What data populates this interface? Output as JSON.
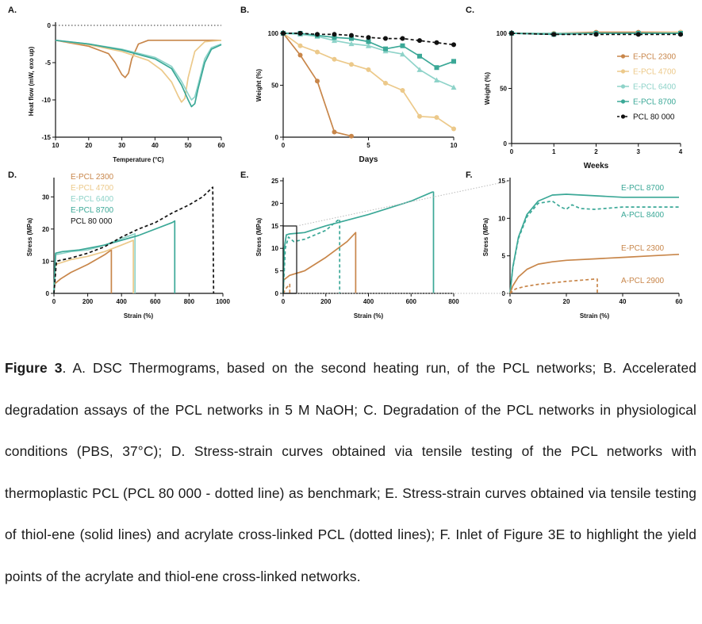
{
  "figure": {
    "caption_label": "Figure 3",
    "caption_text": ". A. DSC Thermograms, based on the second heating run, of the PCL networks; B. Accelerated degradation assays of the PCL networks in 5 M NaOH; C. Degradation of the PCL networks in physiological conditions (PBS, 37°C); D. Stress-strain curves obtained via tensile testing of the PCL networks with thermoplastic PCL (PCL 80 000 - dotted line) as benchmark; E. Stress-strain curves obtained via tensile testing of thiol-ene (solid lines) and acrylate cross-linked PCL (dotted lines); F. Inlet of Figure 3E to highlight the yield points of the acrylate and thiol-ene cross-linked networks."
  },
  "colors": {
    "e2300": "#c8864a",
    "e4700": "#ecc98a",
    "e6400": "#8ed3c9",
    "e8700": "#3ba897",
    "pcl80": "#111111"
  },
  "chart_data": [
    {
      "panel": "A.",
      "type": "line",
      "xlabel": "Temperature (°C)",
      "ylabel": "Heat flow (mW, exo up)",
      "xlim": [
        10,
        60
      ],
      "ylim": [
        -15,
        0
      ],
      "xticks": [
        10,
        20,
        30,
        40,
        50,
        60
      ],
      "yticks": [
        -15,
        -10,
        -5,
        0
      ],
      "reference_line": 0,
      "series": [
        {
          "key": "e2300",
          "x": [
            10,
            20,
            26,
            28,
            30,
            31,
            32,
            33,
            35,
            38,
            45,
            55,
            60
          ],
          "y": [
            -2,
            -2.8,
            -3.8,
            -5,
            -6.6,
            -7,
            -6.4,
            -4.5,
            -2.5,
            -2,
            -2,
            -2,
            -2
          ]
        },
        {
          "key": "e4700",
          "x": [
            10,
            20,
            30,
            38,
            42,
            45,
            47,
            48,
            49,
            50,
            52,
            55,
            60
          ],
          "y": [
            -2,
            -2.6,
            -3.5,
            -4.7,
            -6,
            -7.6,
            -9.5,
            -10.3,
            -9.8,
            -7,
            -3.5,
            -2.2,
            -2
          ]
        },
        {
          "key": "e6400",
          "x": [
            10,
            20,
            30,
            40,
            45,
            48,
            50,
            51,
            52,
            53,
            55,
            57,
            60
          ],
          "y": [
            -2,
            -2.5,
            -3.2,
            -4.3,
            -5.5,
            -7.5,
            -9.2,
            -10,
            -9.6,
            -8,
            -4.5,
            -3,
            -2.5
          ]
        },
        {
          "key": "e8700",
          "x": [
            10,
            20,
            30,
            40,
            45,
            48,
            50,
            51,
            52,
            53,
            55,
            57,
            60
          ],
          "y": [
            -2,
            -2.5,
            -3.3,
            -4.5,
            -5.8,
            -8,
            -10,
            -10.9,
            -10.5,
            -8.5,
            -5,
            -3.2,
            -2.6
          ]
        }
      ]
    },
    {
      "panel": "B.",
      "type": "line",
      "xlabel": "Days",
      "ylabel": "Weight (%)",
      "xlim": [
        0,
        10
      ],
      "ylim": [
        0,
        100
      ],
      "xticks": [
        0,
        5,
        10
      ],
      "yticks": [
        0,
        50,
        100
      ],
      "series": [
        {
          "key": "e2300",
          "x": [
            0,
            1,
            2,
            3,
            4
          ],
          "y": [
            100,
            79,
            54,
            5,
            1
          ]
        },
        {
          "key": "e4700",
          "x": [
            0,
            1,
            2,
            3,
            4,
            5,
            6,
            7,
            8,
            9,
            10
          ],
          "y": [
            100,
            88,
            82,
            75,
            70,
            65,
            52,
            45,
            20,
            19,
            8
          ]
        },
        {
          "key": "e6400",
          "x": [
            0,
            1,
            2,
            3,
            4,
            5,
            6,
            7,
            8,
            9,
            10
          ],
          "y": [
            100,
            99,
            97,
            93,
            90,
            88,
            83,
            80,
            65,
            55,
            48
          ]
        },
        {
          "key": "e8700",
          "x": [
            0,
            1,
            2,
            3,
            4,
            5,
            6,
            7,
            8,
            9,
            10
          ],
          "y": [
            100,
            100,
            98,
            96,
            95,
            92,
            85,
            88,
            78,
            67,
            73
          ]
        },
        {
          "key": "pcl80",
          "dashed": true,
          "x": [
            0,
            1,
            2,
            3,
            4,
            5,
            6,
            7,
            8,
            9,
            10
          ],
          "y": [
            100,
            100,
            99,
            99,
            98,
            96,
            95,
            95,
            93,
            91,
            89
          ]
        }
      ]
    },
    {
      "panel": "C.",
      "type": "line",
      "xlabel": "Weeks",
      "ylabel": "Weight (%)",
      "xlim": [
        0,
        4
      ],
      "ylim": [
        0,
        100
      ],
      "xticks": [
        0,
        1,
        2,
        3,
        4
      ],
      "yticks": [
        0,
        50,
        100
      ],
      "legend": [
        {
          "key": "e2300",
          "label": "E-PCL 2300"
        },
        {
          "key": "e4700",
          "label": "E-PCL 4700"
        },
        {
          "key": "e6400",
          "label": "E-PCL 6400"
        },
        {
          "key": "e8700",
          "label": "E-PCL 8700"
        },
        {
          "key": "pcl80",
          "label": "PCL 80 000"
        }
      ],
      "series": [
        {
          "key": "e2300",
          "x": [
            0,
            1,
            2,
            3,
            4
          ],
          "y": [
            100,
            100,
            101,
            101,
            101
          ]
        },
        {
          "key": "e4700",
          "x": [
            0,
            1,
            2,
            3,
            4
          ],
          "y": [
            100,
            100,
            100,
            100,
            101
          ]
        },
        {
          "key": "e6400",
          "x": [
            0,
            1,
            2,
            3,
            4
          ],
          "y": [
            100,
            100,
            100,
            100,
            100
          ]
        },
        {
          "key": "e8700",
          "x": [
            0,
            1,
            2,
            3,
            4
          ],
          "y": [
            100,
            99,
            100,
            100,
            100
          ]
        },
        {
          "key": "pcl80",
          "dashed": true,
          "x": [
            0,
            1,
            2,
            3,
            4
          ],
          "y": [
            100,
            99,
            99,
            99,
            99
          ]
        }
      ]
    },
    {
      "panel": "D.",
      "type": "line",
      "xlabel": "Strain (%)",
      "ylabel": "Stress (MPa)",
      "xlim": [
        0,
        1000
      ],
      "ylim": [
        0,
        35
      ],
      "xticks": [
        0,
        200,
        400,
        600,
        800,
        1000
      ],
      "yticks": [
        0,
        10,
        20,
        30
      ],
      "legend": [
        {
          "key": "e2300",
          "label": "E-PCL 2300"
        },
        {
          "key": "e4700",
          "label": "E-PCL 4700"
        },
        {
          "key": "e6400",
          "label": "E-PCL 6400"
        },
        {
          "key": "e8700",
          "label": "E-PCL 8700"
        },
        {
          "key": "pcl80",
          "label": "PCL 80 000"
        }
      ],
      "series": [
        {
          "key": "e2300",
          "x": [
            0,
            5,
            40,
            100,
            200,
            300,
            340,
            340
          ],
          "y": [
            0,
            3,
            4.5,
            6.5,
            9,
            12,
            13.5,
            0
          ]
        },
        {
          "key": "e4700",
          "x": [
            0,
            10,
            100,
            200,
            300,
            400,
            470,
            470
          ],
          "y": [
            0,
            9,
            10.5,
            11.5,
            13,
            15,
            16.5,
            0
          ]
        },
        {
          "key": "e6400",
          "x": [
            0,
            10,
            100,
            200,
            300,
            400,
            480,
            480
          ],
          "y": [
            0,
            12,
            13,
            13.5,
            15,
            17,
            18.5,
            0
          ]
        },
        {
          "key": "e8700",
          "x": [
            0,
            10,
            50,
            150,
            300,
            500,
            700,
            715,
            715
          ],
          "y": [
            0,
            12.5,
            13,
            13.5,
            15,
            18,
            22,
            22.5,
            0
          ]
        },
        {
          "key": "pcl80",
          "dashed": true,
          "x": [
            0,
            15,
            100,
            200,
            300,
            400,
            500,
            600,
            700,
            800,
            880,
            940,
            945
          ],
          "y": [
            0,
            10,
            11,
            12.5,
            14.5,
            17.5,
            20,
            22,
            25,
            27.5,
            30,
            33,
            0
          ]
        }
      ]
    },
    {
      "panel": "E.",
      "type": "line",
      "xlabel": "Strain (%)",
      "ylabel": "Stress (MPa)",
      "xlim": [
        0,
        800
      ],
      "ylim": [
        0,
        25
      ],
      "xticks": [
        0,
        200,
        400,
        600,
        800
      ],
      "yticks": [
        0,
        5,
        10,
        15,
        20,
        25
      ],
      "series": [
        {
          "key": "e2300",
          "x": [
            0,
            3,
            30,
            100,
            200,
            300,
            340,
            340
          ],
          "y": [
            0,
            3,
            4,
            5,
            8,
            11.5,
            13.5,
            0
          ]
        },
        {
          "key": "e8700",
          "x": [
            0,
            5,
            15,
            30,
            100,
            200,
            400,
            600,
            700,
            705,
            705
          ],
          "y": [
            0,
            10,
            13,
            13.2,
            13.5,
            15,
            17.5,
            20.5,
            22.5,
            22.5,
            0
          ]
        },
        {
          "key": "e2300",
          "dashed": true,
          "x": [
            0,
            15,
            30,
            31,
            31
          ],
          "y": [
            0,
            1.2,
            2,
            2,
            0
          ]
        },
        {
          "key": "e8700",
          "dashed": true,
          "x": [
            0,
            10,
            25,
            50,
            100,
            150,
            200,
            250,
            265,
            265
          ],
          "y": [
            0,
            10,
            12.5,
            11.5,
            12,
            13,
            14,
            16,
            16.5,
            0
          ]
        }
      ]
    },
    {
      "panel": "F.",
      "type": "line",
      "xlabel": "Strain (%)",
      "ylabel": "Stress (MPa)",
      "xlim": [
        0,
        60
      ],
      "ylim": [
        0,
        15
      ],
      "xticks": [
        0,
        20,
        40,
        60
      ],
      "yticks": [
        0,
        5,
        10,
        15
      ],
      "labels": [
        {
          "key": "e8700",
          "label": "E-PCL 8700"
        },
        {
          "key": "e8700",
          "label": "A-PCL 8400"
        },
        {
          "key": "e2300",
          "label": "E-PCL 2300"
        },
        {
          "key": "e2300",
          "label": "A-PCL 2900"
        }
      ],
      "series": [
        {
          "key": "e8700",
          "x": [
            0,
            1,
            3,
            6,
            10,
            15,
            20,
            30,
            40,
            50,
            60
          ],
          "y": [
            0,
            3.5,
            7.5,
            10.5,
            12.3,
            13.1,
            13.2,
            13,
            12.8,
            12.8,
            12.8
          ]
        },
        {
          "key": "e8700",
          "dashed": true,
          "x": [
            0,
            1,
            3,
            6,
            10,
            15,
            18,
            20,
            22,
            25,
            30,
            40,
            50,
            60
          ],
          "y": [
            0,
            3.4,
            7.3,
            10.2,
            12,
            12.3,
            11.5,
            11.2,
            11.8,
            11.3,
            11.2,
            11.5,
            11.5,
            11.5
          ]
        },
        {
          "key": "e2300",
          "x": [
            0,
            1,
            3,
            6,
            10,
            15,
            20,
            30,
            40,
            50,
            60
          ],
          "y": [
            0,
            1,
            2.2,
            3.2,
            3.9,
            4.2,
            4.4,
            4.6,
            4.8,
            5,
            5.2
          ]
        },
        {
          "key": "e2300",
          "dashed": true,
          "x": [
            0,
            2,
            5,
            10,
            20,
            30,
            31,
            31
          ],
          "y": [
            0,
            0.6,
            0.9,
            1.2,
            1.6,
            1.9,
            1.9,
            0
          ]
        }
      ]
    }
  ]
}
